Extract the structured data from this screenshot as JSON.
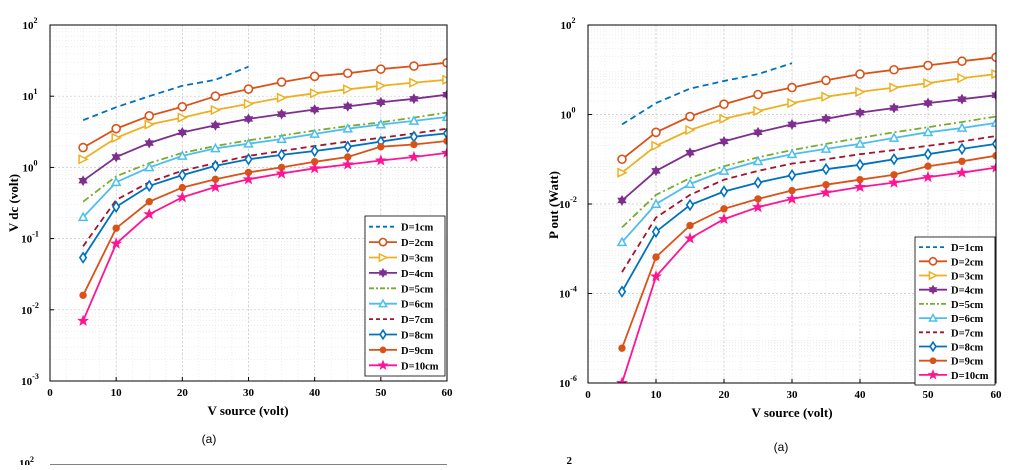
{
  "chart_data": [
    {
      "type": "line",
      "yscale": "log",
      "xlabel": "V source (volt)",
      "ylabel": "V dc (volt)",
      "caption": "(a)",
      "xlim": [
        0,
        60
      ],
      "ylim": [
        0.001,
        100
      ],
      "x_ticks": [
        0,
        10,
        20,
        30,
        40,
        50,
        60
      ],
      "y_ticks": [
        {
          "base": "10",
          "exp": "-3",
          "value": 0.001
        },
        {
          "base": "10",
          "exp": "-2",
          "value": 0.01
        },
        {
          "base": "10",
          "exp": "-1",
          "value": 0.1
        },
        {
          "base": "10",
          "exp": "0",
          "value": 1
        },
        {
          "base": "10",
          "exp": "1",
          "value": 10
        },
        {
          "base": "10",
          "exp": "2",
          "value": 100
        }
      ],
      "grid": true,
      "legend_position": "bottom-right",
      "series": [
        {
          "name": "D=1cm",
          "color": "#0072BD",
          "style": "dashed",
          "marker": "none",
          "x": [
            5,
            10,
            15,
            20,
            25,
            30
          ],
          "values": [
            4.6,
            7.0,
            10.0,
            14.0,
            17.0,
            26.0
          ]
        },
        {
          "name": "D=2cm",
          "color": "#D95319",
          "style": "solid",
          "marker": "circle",
          "x": [
            5,
            10,
            15,
            20,
            25,
            30,
            35,
            40,
            45,
            50,
            55,
            60
          ],
          "values": [
            1.9,
            3.5,
            5.3,
            7.1,
            10.0,
            12.6,
            15.8,
            19.0,
            21.0,
            24.0,
            26.5,
            29.5
          ]
        },
        {
          "name": "D=3cm",
          "color": "#EDB120",
          "style": "solid",
          "marker": "triangle-right",
          "x": [
            5,
            10,
            15,
            20,
            25,
            30,
            35,
            40,
            45,
            50,
            55,
            60
          ],
          "values": [
            1.3,
            2.6,
            4.0,
            5.0,
            6.4,
            7.8,
            9.5,
            11.0,
            12.5,
            14.0,
            15.5,
            17.0
          ]
        },
        {
          "name": "D=4cm",
          "color": "#7E2F8E",
          "style": "solid",
          "marker": "hexagram",
          "x": [
            5,
            10,
            15,
            20,
            25,
            30,
            35,
            40,
            45,
            50,
            55,
            60
          ],
          "values": [
            0.65,
            1.4,
            2.2,
            3.1,
            3.9,
            4.8,
            5.6,
            6.5,
            7.2,
            8.2,
            9.2,
            10.5
          ]
        },
        {
          "name": "D=5cm",
          "color": "#77AC30",
          "style": "dashdot",
          "marker": "none",
          "x": [
            5,
            10,
            15,
            20,
            25,
            30,
            35,
            40,
            45,
            50,
            55,
            60
          ],
          "values": [
            0.33,
            0.75,
            1.15,
            1.6,
            2.0,
            2.4,
            2.8,
            3.3,
            3.8,
            4.3,
            5.0,
            5.9
          ]
        },
        {
          "name": "D=6cm",
          "color": "#4DBEEE",
          "style": "solid",
          "marker": "triangle-up",
          "x": [
            5,
            10,
            15,
            20,
            25,
            30,
            35,
            40,
            45,
            50,
            55,
            60
          ],
          "values": [
            0.2,
            0.62,
            1.0,
            1.45,
            1.85,
            2.15,
            2.5,
            2.95,
            3.5,
            4.0,
            4.5,
            5.1
          ]
        },
        {
          "name": "D=7cm",
          "color": "#A2142F",
          "style": "dashed",
          "marker": "none",
          "x": [
            5,
            10,
            15,
            20,
            25,
            30,
            35,
            40,
            45,
            50,
            55,
            60
          ],
          "values": [
            0.078,
            0.35,
            0.62,
            0.9,
            1.15,
            1.45,
            1.7,
            2.0,
            2.3,
            2.6,
            3.0,
            3.5
          ]
        },
        {
          "name": "D=8cm",
          "color": "#0072BD",
          "style": "solid",
          "marker": "diamond",
          "x": [
            5,
            10,
            15,
            20,
            25,
            30,
            35,
            40,
            45,
            50,
            55,
            60
          ],
          "values": [
            0.054,
            0.28,
            0.55,
            0.78,
            1.05,
            1.3,
            1.5,
            1.7,
            1.95,
            2.3,
            2.7,
            3.0
          ]
        },
        {
          "name": "D=9cm",
          "color": "#D95319",
          "style": "solid",
          "marker": "filled-circle",
          "x": [
            5,
            10,
            15,
            20,
            25,
            30,
            35,
            40,
            45,
            50,
            55,
            60
          ],
          "values": [
            0.016,
            0.14,
            0.33,
            0.52,
            0.68,
            0.85,
            1.0,
            1.2,
            1.4,
            1.95,
            2.1,
            2.35
          ]
        },
        {
          "name": "D=10cm",
          "color": "#FF1493",
          "style": "solid",
          "marker": "star",
          "x": [
            5,
            10,
            15,
            20,
            25,
            30,
            35,
            40,
            45,
            50,
            55,
            60
          ],
          "values": [
            0.007,
            0.085,
            0.22,
            0.38,
            0.53,
            0.68,
            0.82,
            0.97,
            1.1,
            1.25,
            1.4,
            1.6
          ]
        }
      ]
    },
    {
      "type": "line",
      "yscale": "log",
      "xlabel": "V source (volt)",
      "ylabel": "P out (Watt)",
      "caption": "(a)",
      "xlim": [
        0,
        60
      ],
      "ylim": [
        1e-06,
        100
      ],
      "x_ticks": [
        0,
        10,
        20,
        30,
        40,
        50,
        60
      ],
      "y_ticks": [
        {
          "base": "10",
          "exp": "-6",
          "value": 1e-06
        },
        {
          "base": "10",
          "exp": "-4",
          "value": 0.0001
        },
        {
          "base": "10",
          "exp": "-2",
          "value": 0.01
        },
        {
          "base": "10",
          "exp": "0",
          "value": 1
        },
        {
          "base": "10",
          "exp": "2",
          "value": 100
        }
      ],
      "grid": true,
      "legend_position": "bottom-right",
      "series": [
        {
          "name": "D=1cm",
          "color": "#0072BD",
          "style": "dashed",
          "marker": "none",
          "x": [
            5,
            10,
            15,
            20,
            25,
            30
          ],
          "values": [
            0.6,
            1.8,
            3.8,
            5.6,
            8.0,
            14.0
          ]
        },
        {
          "name": "D=2cm",
          "color": "#D95319",
          "style": "solid",
          "marker": "circle",
          "x": [
            5,
            10,
            15,
            20,
            25,
            30,
            35,
            40,
            45,
            50,
            55,
            60
          ],
          "values": [
            0.1,
            0.4,
            0.9,
            1.7,
            2.8,
            4.0,
            5.8,
            8.0,
            10.0,
            12.5,
            15.5,
            19.0
          ]
        },
        {
          "name": "D=3cm",
          "color": "#EDB120",
          "style": "solid",
          "marker": "triangle-right",
          "x": [
            5,
            10,
            15,
            20,
            25,
            30,
            35,
            40,
            45,
            50,
            55,
            60
          ],
          "values": [
            0.05,
            0.2,
            0.45,
            0.8,
            1.2,
            1.8,
            2.5,
            3.2,
            4.0,
            5.0,
            6.5,
            8.0
          ]
        },
        {
          "name": "D=4cm",
          "color": "#7E2F8E",
          "style": "solid",
          "marker": "hexagram",
          "x": [
            5,
            10,
            15,
            20,
            25,
            30,
            35,
            40,
            45,
            50,
            55,
            60
          ],
          "values": [
            0.012,
            0.055,
            0.14,
            0.25,
            0.4,
            0.6,
            0.8,
            1.1,
            1.4,
            1.8,
            2.2,
            2.7
          ]
        },
        {
          "name": "D=5cm",
          "color": "#77AC30",
          "style": "dashdot",
          "marker": "none",
          "x": [
            5,
            10,
            15,
            20,
            25,
            30,
            35,
            40,
            45,
            50,
            55,
            60
          ],
          "values": [
            0.003,
            0.016,
            0.038,
            0.07,
            0.11,
            0.16,
            0.22,
            0.3,
            0.4,
            0.52,
            0.68,
            0.9
          ]
        },
        {
          "name": "D=6cm",
          "color": "#4DBEEE",
          "style": "solid",
          "marker": "triangle-up",
          "x": [
            5,
            10,
            15,
            20,
            25,
            30,
            35,
            40,
            45,
            50,
            55,
            60
          ],
          "values": [
            0.0014,
            0.01,
            0.028,
            0.055,
            0.09,
            0.13,
            0.17,
            0.22,
            0.3,
            0.4,
            0.5,
            0.65
          ]
        },
        {
          "name": "D=7cm",
          "color": "#A2142F",
          "style": "dashed",
          "marker": "none",
          "x": [
            5,
            10,
            15,
            20,
            25,
            30,
            35,
            40,
            45,
            50,
            55,
            60
          ],
          "values": [
            0.0003,
            0.005,
            0.016,
            0.035,
            0.055,
            0.08,
            0.1,
            0.13,
            0.16,
            0.2,
            0.25,
            0.33
          ]
        },
        {
          "name": "D=8cm",
          "color": "#0072BD",
          "style": "solid",
          "marker": "diamond",
          "x": [
            5,
            10,
            15,
            20,
            25,
            30,
            35,
            40,
            45,
            50,
            55,
            60
          ],
          "values": [
            0.00011,
            0.0024,
            0.0095,
            0.019,
            0.03,
            0.044,
            0.06,
            0.075,
            0.1,
            0.13,
            0.17,
            0.22
          ]
        },
        {
          "name": "D=9cm",
          "color": "#D95319",
          "style": "solid",
          "marker": "filled-circle",
          "x": [
            5,
            10,
            15,
            20,
            25,
            30,
            35,
            40,
            45,
            50,
            55,
            60
          ],
          "values": [
            6e-06,
            0.00065,
            0.0033,
            0.0078,
            0.013,
            0.02,
            0.027,
            0.035,
            0.045,
            0.07,
            0.09,
            0.12
          ]
        },
        {
          "name": "D=10cm",
          "color": "#FF1493",
          "style": "solid",
          "marker": "star",
          "x": [
            5,
            10,
            15,
            20,
            25,
            30,
            35,
            40,
            45,
            50,
            55,
            60
          ],
          "values": [
            1e-06,
            0.00024,
            0.0017,
            0.0046,
            0.0085,
            0.013,
            0.018,
            0.024,
            0.03,
            0.04,
            0.05,
            0.065
          ]
        }
      ]
    }
  ],
  "bottom_partial_tick": "10",
  "bottom_partial_tick_exp": "2",
  "bottom_partial_tick_right": "2"
}
